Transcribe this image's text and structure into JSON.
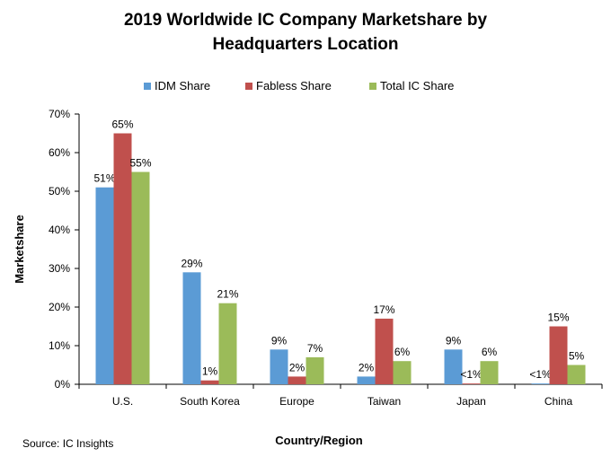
{
  "title_line1": "2019 Worldwide IC Company Marketshare by",
  "title_line2": "Headquarters Location",
  "source": "Source: IC Insights",
  "chart_data": {
    "type": "bar",
    "title": "2019 Worldwide IC Company Marketshare by Headquarters Location",
    "xlabel": "Country/Region",
    "ylabel": "Marketshare",
    "ylim": [
      0,
      70
    ],
    "yticks": [
      "0%",
      "10%",
      "20%",
      "30%",
      "40%",
      "50%",
      "60%",
      "70%"
    ],
    "categories": [
      "U.S.",
      "South Korea",
      "Europe",
      "Taiwan",
      "Japan",
      "China"
    ],
    "legend_position": "top",
    "grid": false,
    "series": [
      {
        "name": "IDM Share",
        "color": "#5b9bd5",
        "values": [
          51,
          29,
          9,
          2,
          9,
          0.2
        ],
        "labels": [
          "51%",
          "29%",
          "9%",
          "2%",
          "9%",
          "<1%"
        ]
      },
      {
        "name": "Fabless Share",
        "color": "#c0504d",
        "values": [
          65,
          1,
          2,
          17,
          0.2,
          15
        ],
        "labels": [
          "65%",
          "1%",
          "2%",
          "17%",
          "<1%",
          "15%"
        ]
      },
      {
        "name": "Total IC Share",
        "color": "#9bbb59",
        "values": [
          55,
          21,
          7,
          6,
          6,
          5
        ],
        "labels": [
          "55%",
          "21%",
          "7%",
          "6%",
          "6%",
          "5%"
        ]
      }
    ]
  }
}
